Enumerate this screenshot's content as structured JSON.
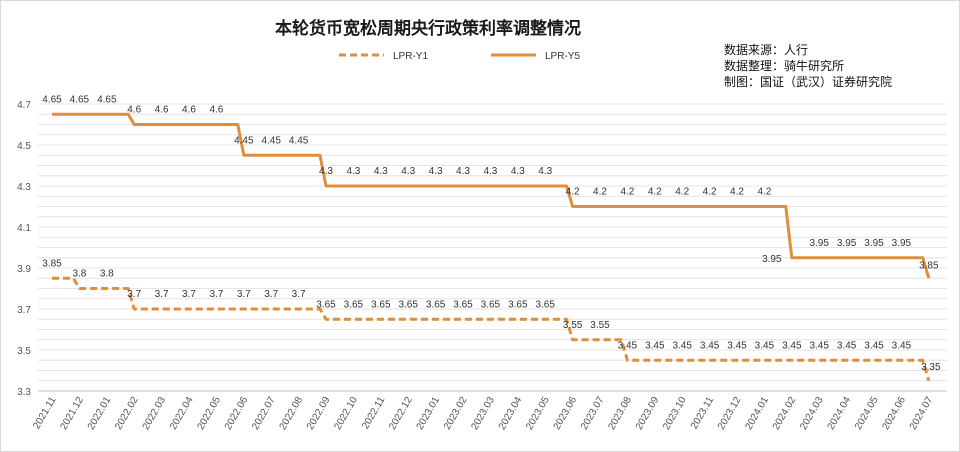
{
  "chart_data": {
    "type": "line",
    "title": "本轮货币宽松周期央行政策利率调整情况",
    "notes": [
      "数据来源：人行",
      "数据整理：骑牛研究所",
      "制图：国证（武汉）证券研究院"
    ],
    "x": [
      "2021.11",
      "2021.12",
      "2022.01",
      "2022.02",
      "2022.03",
      "2022.04",
      "2022.05",
      "2022.06",
      "2022.07",
      "2022.08",
      "2022.09",
      "2022.10",
      "2022.11",
      "2022.12",
      "2023.01",
      "2023.02",
      "2023.03",
      "2023.04",
      "2023.05",
      "2023.06",
      "2023.07",
      "2023.08",
      "2023.09",
      "2023.10",
      "2023.11",
      "2023.12",
      "2024.01",
      "2024.02",
      "2024.03",
      "2024.04",
      "2024.05",
      "2024.06",
      "2024.07"
    ],
    "series": [
      {
        "name": "LPR-Y1",
        "style": "dashed",
        "color": "#e08e3c",
        "values": [
          3.85,
          3.8,
          3.8,
          3.7,
          3.7,
          3.7,
          3.7,
          3.7,
          3.7,
          3.7,
          3.65,
          3.65,
          3.65,
          3.65,
          3.65,
          3.65,
          3.65,
          3.65,
          3.65,
          3.55,
          3.55,
          3.45,
          3.45,
          3.45,
          3.45,
          3.45,
          3.45,
          3.45,
          3.45,
          3.45,
          3.45,
          3.45,
          3.35
        ]
      },
      {
        "name": "LPR-Y5",
        "style": "solid",
        "color": "#e08e3c",
        "values": [
          4.65,
          4.65,
          4.65,
          4.6,
          4.6,
          4.6,
          4.6,
          4.45,
          4.45,
          4.45,
          4.3,
          4.3,
          4.3,
          4.3,
          4.3,
          4.3,
          4.3,
          4.3,
          4.3,
          4.2,
          4.2,
          4.2,
          4.2,
          4.2,
          4.2,
          4.2,
          4.2,
          3.95,
          3.95,
          3.95,
          3.95,
          3.95,
          3.85
        ]
      }
    ],
    "ylim": [
      3.3,
      4.7
    ],
    "yticks": [
      "3.3",
      "3.5",
      "3.7",
      "3.9",
      "4.1",
      "4.3",
      "4.5",
      "4.7"
    ],
    "ygrid_step": 0.05,
    "grid": true,
    "legend": "top-center",
    "xlabel": "",
    "ylabel": ""
  }
}
